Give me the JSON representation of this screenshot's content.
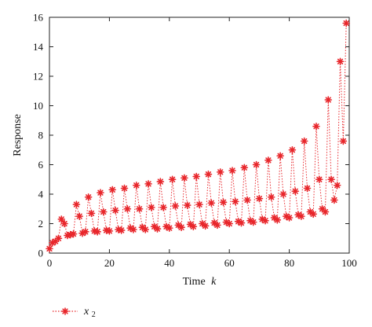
{
  "chart_data": {
    "type": "line",
    "title": "",
    "xlabel": "Time",
    "xlabel_var": "k",
    "ylabel": "Response",
    "xlim": [
      0,
      100
    ],
    "ylim": [
      0,
      16
    ],
    "xticks": [
      0,
      20,
      40,
      60,
      80,
      100
    ],
    "yticks": [
      0,
      2,
      4,
      6,
      8,
      10,
      12,
      14,
      16
    ],
    "grid": false,
    "legend_position": "bottom-left",
    "series": [
      {
        "name": "x",
        "name_sub": "2",
        "color": "#e8262b",
        "line_style": "dotted",
        "marker": "asterisk",
        "x": [
          0,
          1,
          2,
          3,
          4,
          5,
          6,
          7,
          8,
          9,
          10,
          11,
          12,
          13,
          14,
          15,
          16,
          17,
          18,
          19,
          20,
          21,
          22,
          23,
          24,
          25,
          26,
          27,
          28,
          29,
          30,
          31,
          32,
          33,
          34,
          35,
          36,
          37,
          38,
          39,
          40,
          41,
          42,
          43,
          44,
          45,
          46,
          47,
          48,
          49,
          50,
          51,
          52,
          53,
          54,
          55,
          56,
          57,
          58,
          59,
          60,
          61,
          62,
          63,
          64,
          65,
          66,
          67,
          68,
          69,
          70,
          71,
          72,
          73,
          74,
          75,
          76,
          77,
          78,
          79,
          80,
          81,
          82,
          83,
          84,
          85,
          86,
          87,
          88,
          89,
          90,
          91,
          92,
          93,
          94,
          95,
          96,
          97,
          98,
          99
        ],
        "y": [
          0.3,
          0.7,
          0.8,
          1.0,
          2.3,
          2.0,
          1.2,
          1.25,
          1.3,
          3.3,
          2.5,
          1.35,
          1.45,
          3.8,
          2.7,
          1.5,
          1.45,
          4.1,
          2.8,
          1.55,
          1.5,
          4.3,
          2.9,
          1.6,
          1.55,
          4.4,
          3.0,
          1.7,
          1.6,
          4.6,
          3.0,
          1.75,
          1.6,
          4.7,
          3.1,
          1.8,
          1.65,
          4.85,
          3.1,
          1.8,
          1.7,
          5.0,
          3.2,
          1.9,
          1.75,
          5.1,
          3.25,
          1.95,
          1.8,
          5.2,
          3.3,
          2.0,
          1.85,
          5.35,
          3.4,
          2.05,
          1.9,
          5.5,
          3.45,
          2.1,
          2.0,
          5.6,
          3.5,
          2.15,
          2.05,
          5.8,
          3.6,
          2.2,
          2.1,
          6.0,
          3.7,
          2.3,
          2.2,
          6.3,
          3.8,
          2.4,
          2.25,
          6.6,
          4.0,
          2.5,
          2.4,
          7.0,
          4.2,
          2.6,
          2.5,
          7.6,
          4.4,
          2.8,
          2.65,
          8.6,
          5.0,
          3.0,
          2.8,
          10.4,
          5.0,
          3.6,
          4.6,
          13.0,
          7.6,
          15.6
        ]
      }
    ]
  }
}
